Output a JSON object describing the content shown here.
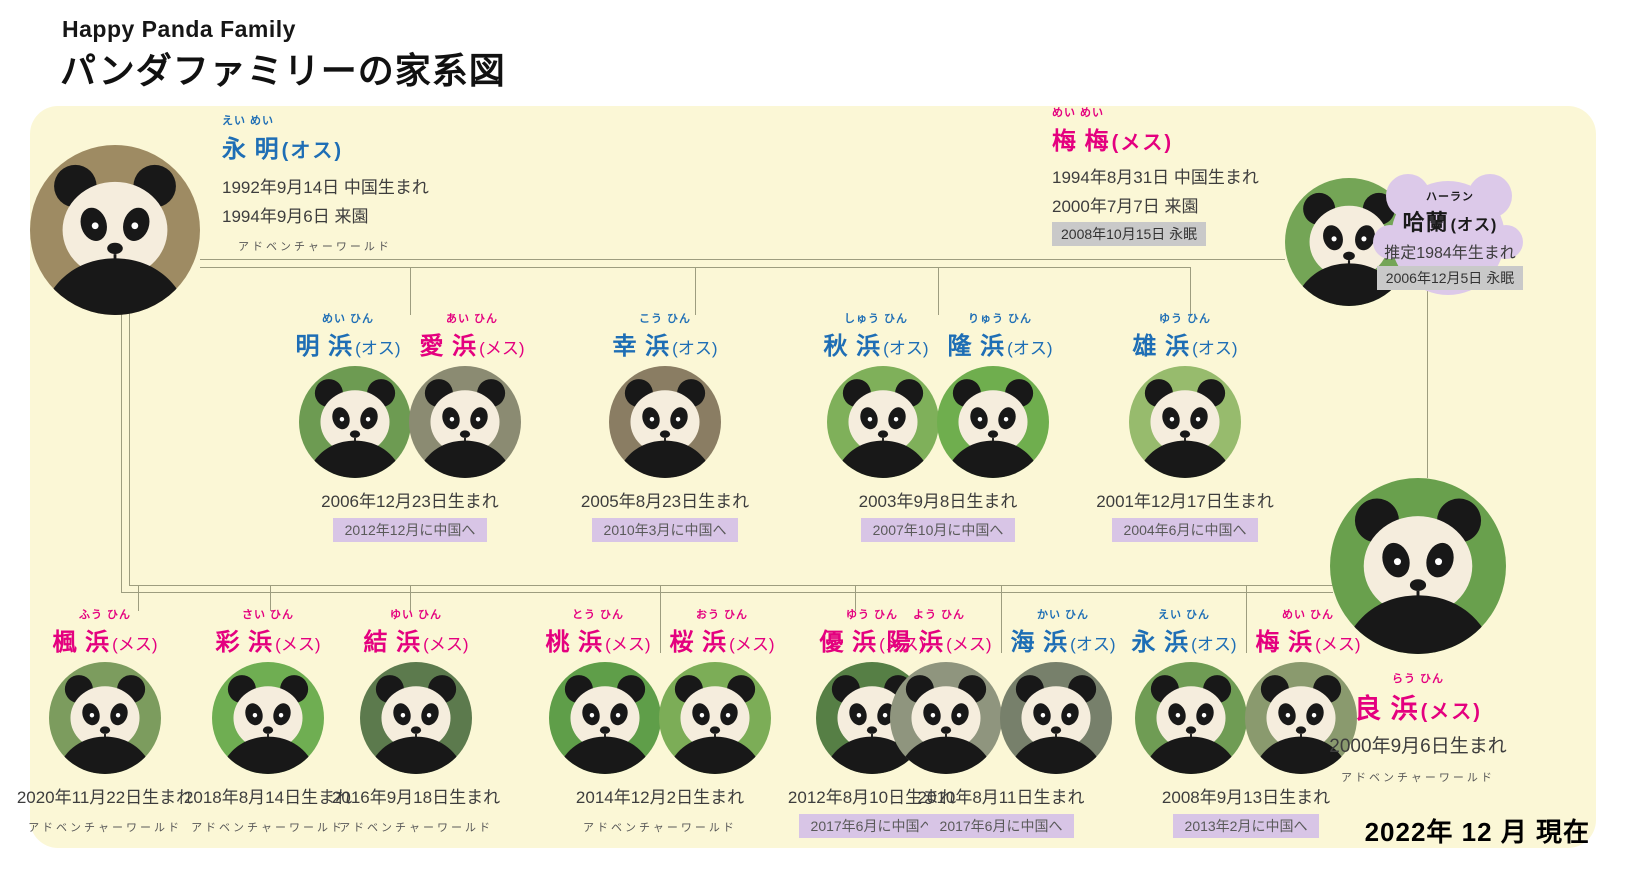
{
  "header": {
    "title_en": "Happy Panda Family",
    "title_jp": "パンダファミリーの家系図"
  },
  "footer": {
    "as_of": "2022年 12 月 現在"
  },
  "park_label": "アドベンチャーワールド",
  "colors": {
    "male": "#1e6eb5",
    "female": "#e4007f",
    "background": "#fbf7d6",
    "moved_box": "#d8c5e6",
    "died_box": "#c9c9c9",
    "line": "#9d9d7f",
    "haran_blob": "#dcc9e9"
  },
  "tree": {
    "father": {
      "furigana": "えい めい",
      "name": "永 明",
      "sex": "(オス)",
      "born": "1992年9月14日 中国生まれ",
      "arrived": "1994年9月6日 来園"
    },
    "mother": {
      "furigana": "めい めい",
      "name": "梅 梅",
      "sex": "(メス)",
      "born": "1994年8月31日 中国生まれ",
      "arrived": "2000年7月7日 来園",
      "died": "2008年10月15日 永眠"
    },
    "haran": {
      "furigana": "ハーラン",
      "name": "哈蘭",
      "sex": "(オス)",
      "born": "推定1984年生まれ",
      "died": "2006年12月5日 永眠"
    },
    "rauhin": {
      "furigana": "らう ひん",
      "name": "良 浜",
      "sex": "(メス)",
      "born": "2000年9月6日生まれ"
    },
    "middle": [
      {
        "pandas": [
          {
            "furigana": "めい ひん",
            "name": "明 浜",
            "sex": "(オス)"
          },
          {
            "furigana": "あい ひん",
            "name": "愛 浜",
            "sex": "(メス)"
          }
        ],
        "born": "2006年12月23日生まれ",
        "moved": "2012年12月に中国へ"
      },
      {
        "pandas": [
          {
            "furigana": "こう ひん",
            "name": "幸 浜",
            "sex": "(オス)"
          }
        ],
        "born": "2005年8月23日生まれ",
        "moved": "2010年3月に中国へ"
      },
      {
        "pandas": [
          {
            "furigana": "しゅう ひん",
            "name": "秋 浜",
            "sex": "(オス)"
          },
          {
            "furigana": "りゅう ひん",
            "name": "隆 浜",
            "sex": "(オス)"
          }
        ],
        "born": "2003年9月8日生まれ",
        "moved": "2007年10月に中国へ"
      },
      {
        "pandas": [
          {
            "furigana": "ゆう ひん",
            "name": "雄 浜",
            "sex": "(オス)"
          }
        ],
        "born": "2001年12月17日生まれ",
        "moved": "2004年6月に中国へ"
      }
    ],
    "bottom": [
      {
        "pandas": [
          {
            "furigana": "ふう ひん",
            "name": "楓 浜",
            "sex": "(メス)"
          }
        ],
        "born": "2020年11月22日生まれ"
      },
      {
        "pandas": [
          {
            "furigana": "さい ひん",
            "name": "彩 浜",
            "sex": "(メス)"
          }
        ],
        "born": "2018年8月14日生まれ"
      },
      {
        "pandas": [
          {
            "furigana": "ゆい ひん",
            "name": "結 浜",
            "sex": "(メス)"
          }
        ],
        "born": "2016年9月18日生まれ"
      },
      {
        "pandas": [
          {
            "furigana": "とう ひん",
            "name": "桃 浜",
            "sex": "(メス)"
          },
          {
            "furigana": "おう ひん",
            "name": "桜 浜",
            "sex": "(メス)"
          }
        ],
        "born": "2014年12月2日生まれ"
      },
      {
        "pandas": [
          {
            "furigana": "ゆう ひん",
            "name": "優 浜",
            "sex": "(メス)"
          }
        ],
        "born": "2012年8月10日生まれ",
        "moved": "2017年6月に中国へ"
      },
      {
        "pandas": [
          {
            "furigana": "よう ひん",
            "name": "陽 浜",
            "sex": "(メス)"
          },
          {
            "furigana": "かい ひん",
            "name": "海 浜",
            "sex": "(オス)"
          }
        ],
        "born": "2010年8月11日生まれ",
        "moved": "2017年6月に中国へ"
      },
      {
        "pandas": [
          {
            "furigana": "えい ひん",
            "name": "永 浜",
            "sex": "(オス)"
          },
          {
            "furigana": "めい ひん",
            "name": "梅 浜",
            "sex": "(メス)"
          }
        ],
        "born": "2008年9月13日生まれ",
        "moved": "2013年2月に中国へ"
      }
    ]
  }
}
